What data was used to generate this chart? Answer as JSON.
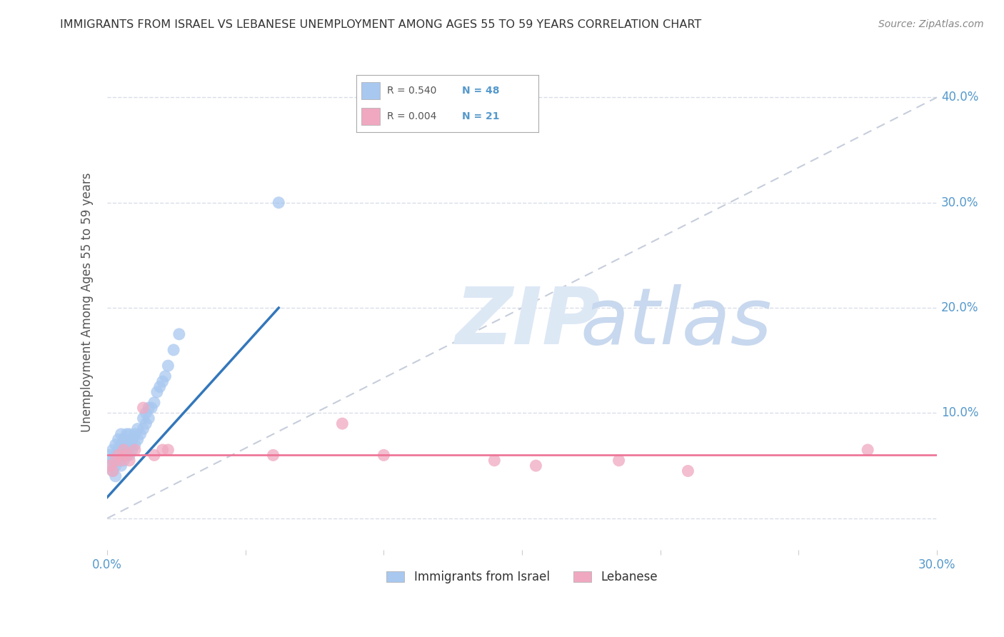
{
  "title": "IMMIGRANTS FROM ISRAEL VS LEBANESE UNEMPLOYMENT AMONG AGES 55 TO 59 YEARS CORRELATION CHART",
  "source": "Source: ZipAtlas.com",
  "ylabel": "Unemployment Among Ages 55 to 59 years",
  "xlim": [
    0.0,
    0.3
  ],
  "ylim": [
    -0.03,
    0.44
  ],
  "yticks": [
    0.0,
    0.1,
    0.2,
    0.3,
    0.4
  ],
  "xticks": [
    0.0,
    0.05,
    0.1,
    0.15,
    0.2,
    0.25,
    0.3
  ],
  "xtick_labels": [
    "0.0%",
    "",
    "",
    "",
    "",
    "",
    "30.0%"
  ],
  "ytick_labels_right": [
    "",
    "10.0%",
    "20.0%",
    "30.0%",
    "40.0%"
  ],
  "legend_labels": [
    "Immigrants from Israel",
    "Lebanese"
  ],
  "R_israel": 0.54,
  "N_israel": 48,
  "R_lebanese": 0.004,
  "N_lebanese": 21,
  "israel_color": "#a8c8f0",
  "lebanese_color": "#f0a8c0",
  "israel_line_color": "#3377bb",
  "lebanese_line_color": "#ee7799",
  "diagonal_line_color": "#c0c8d8",
  "background_color": "#ffffff",
  "grid_color": "#d8dde8",
  "title_color": "#333333",
  "axis_label_color": "#555555",
  "tick_color": "#5599cc",
  "israel_scatter_x": [
    0.001,
    0.001,
    0.002,
    0.002,
    0.002,
    0.003,
    0.003,
    0.003,
    0.003,
    0.004,
    0.004,
    0.004,
    0.005,
    0.005,
    0.005,
    0.005,
    0.006,
    0.006,
    0.006,
    0.007,
    0.007,
    0.007,
    0.008,
    0.008,
    0.008,
    0.009,
    0.009,
    0.01,
    0.01,
    0.011,
    0.011,
    0.012,
    0.013,
    0.013,
    0.014,
    0.014,
    0.015,
    0.015,
    0.016,
    0.017,
    0.018,
    0.019,
    0.02,
    0.021,
    0.022,
    0.024,
    0.026,
    0.062
  ],
  "israel_scatter_y": [
    0.05,
    0.06,
    0.045,
    0.055,
    0.065,
    0.05,
    0.06,
    0.07,
    0.04,
    0.055,
    0.065,
    0.075,
    0.05,
    0.06,
    0.07,
    0.08,
    0.055,
    0.065,
    0.075,
    0.06,
    0.07,
    0.08,
    0.06,
    0.07,
    0.08,
    0.065,
    0.075,
    0.07,
    0.08,
    0.075,
    0.085,
    0.08,
    0.085,
    0.095,
    0.09,
    0.1,
    0.095,
    0.105,
    0.105,
    0.11,
    0.12,
    0.125,
    0.13,
    0.135,
    0.145,
    0.16,
    0.175,
    0.3
  ],
  "lebanese_scatter_x": [
    0.001,
    0.002,
    0.003,
    0.004,
    0.005,
    0.006,
    0.007,
    0.008,
    0.01,
    0.013,
    0.017,
    0.02,
    0.022,
    0.06,
    0.085,
    0.1,
    0.14,
    0.155,
    0.185,
    0.21,
    0.275
  ],
  "lebanese_scatter_y": [
    0.05,
    0.045,
    0.055,
    0.06,
    0.055,
    0.065,
    0.06,
    0.055,
    0.065,
    0.105,
    0.06,
    0.065,
    0.065,
    0.06,
    0.09,
    0.06,
    0.055,
    0.05,
    0.055,
    0.045,
    0.065
  ],
  "israel_trend_x0": 0.0,
  "israel_trend_x1": 0.062,
  "israel_trend_y0": 0.02,
  "israel_trend_y1": 0.2,
  "lebanese_trend_y": 0.06
}
